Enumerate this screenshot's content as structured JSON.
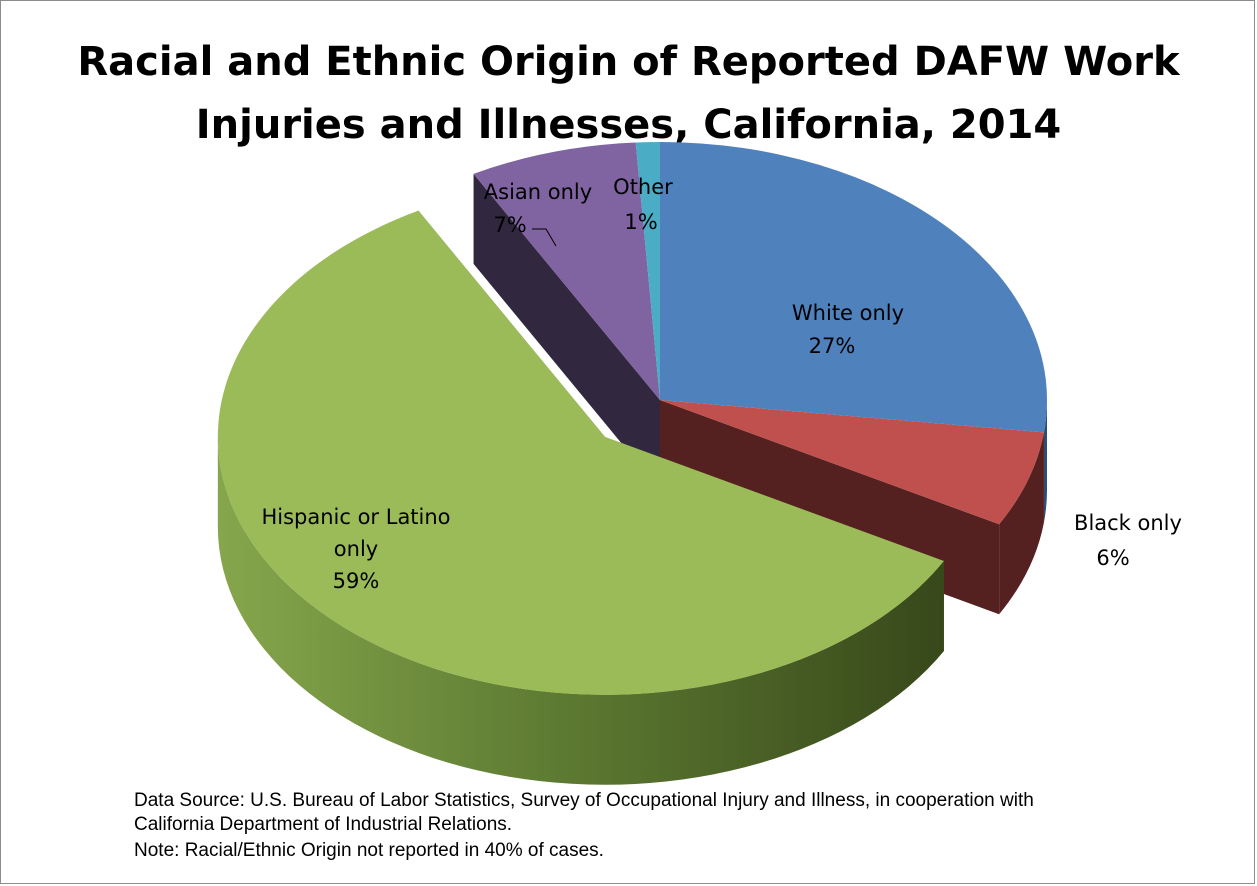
{
  "chart_data": {
    "type": "pie",
    "title_lines": [
      "Racial and Ethnic Origin of Reported DAFW Work",
      "Injuries and Illnesses, California, 2014"
    ],
    "three_d": true,
    "slices": [
      {
        "label": "White only",
        "value": 27,
        "value_label": "27%",
        "color": "#4f81bd",
        "side_color": "#2c4d75"
      },
      {
        "label": "Black only",
        "value": 6,
        "value_label": "6%",
        "color": "#c0504d",
        "side_color": "#552020"
      },
      {
        "label": "Hispanic or Latino only",
        "label_lines": [
          "Hispanic or Latino",
          "only"
        ],
        "value": 59,
        "value_label": "59%",
        "color": "#9bbb59",
        "side_color": "#5e7a31",
        "exploded": true
      },
      {
        "label": "Asian only",
        "value": 7,
        "value_label": "7%",
        "color": "#8064a2",
        "side_color": "#312840"
      },
      {
        "label": "Other",
        "value": 1,
        "value_label": "1%",
        "color": "#4bacc6",
        "side_color": "#2a6a7b"
      }
    ]
  },
  "footer": {
    "source_line1": "Data Source: U.S. Bureau of Labor Statistics, Survey of Occupational Injury and Illness, in cooperation with",
    "source_line2": "California Department of Industrial Relations.",
    "note": "Note: Racial/Ethnic Origin not reported in 40% of cases."
  }
}
